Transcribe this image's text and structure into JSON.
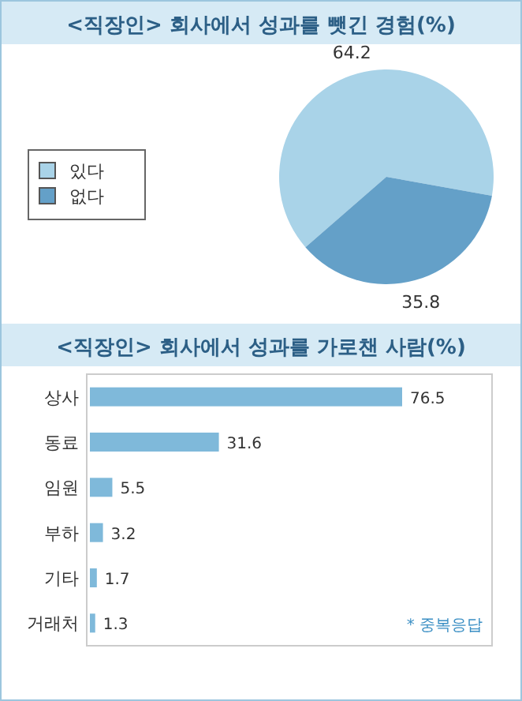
{
  "chart_data": [
    {
      "type": "pie",
      "title": "<직장인> 회사에서 성과를 뺏긴 경험(%)",
      "categories": [
        "있다",
        "없다"
      ],
      "values": [
        64.2,
        35.8
      ],
      "colors": [
        "#a9d3e8",
        "#64a0c8"
      ],
      "data_labels": true,
      "legend": "left"
    },
    {
      "type": "bar",
      "orientation": "horizontal",
      "title": "<직장인> 회사에서 성과를 가로챈 사람(%)",
      "categories": [
        "상사",
        "동료",
        "임원",
        "부하",
        "기타",
        "거래처"
      ],
      "values": [
        76.5,
        31.6,
        5.5,
        3.2,
        1.7,
        1.3
      ],
      "color": "#7fb9da",
      "data_labels": true,
      "annotations": [
        "* 중복응답"
      ]
    }
  ]
}
